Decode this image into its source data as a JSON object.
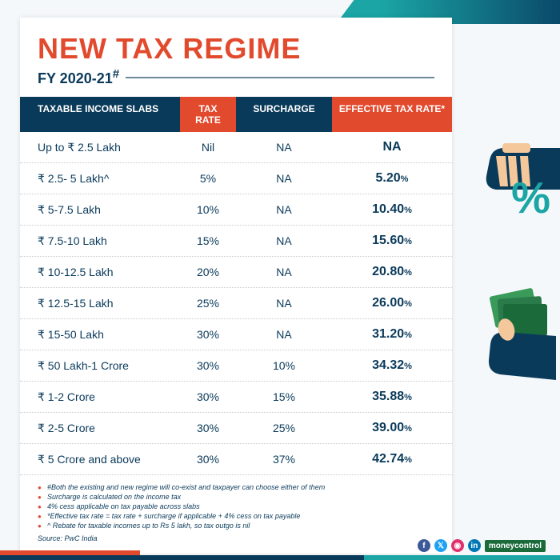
{
  "title": "NEW TAX REGIME",
  "subtitle": "FY 2020-21",
  "subtitle_suffix": "#",
  "headers": {
    "col1": "TAXABLE INCOME SLABS",
    "col2": "TAX RATE",
    "col3": "SURCHARGE",
    "col4": "EFFECTIVE TAX RATE*"
  },
  "rows": [
    {
      "slab": "Up to ₹ 2.5 Lakh",
      "rate": "Nil",
      "surcharge": "NA",
      "eff": "NA",
      "eff_pct": ""
    },
    {
      "slab": "₹ 2.5- 5 Lakh^",
      "rate": "5%",
      "surcharge": "NA",
      "eff": "5.20",
      "eff_pct": "%"
    },
    {
      "slab": "₹ 5-7.5 Lakh",
      "rate": "10%",
      "surcharge": "NA",
      "eff": "10.40",
      "eff_pct": "%"
    },
    {
      "slab": "₹ 7.5-10 Lakh",
      "rate": "15%",
      "surcharge": "NA",
      "eff": "15.60",
      "eff_pct": "%"
    },
    {
      "slab": "₹ 10-12.5 Lakh",
      "rate": "20%",
      "surcharge": "NA",
      "eff": "20.80",
      "eff_pct": "%"
    },
    {
      "slab": "₹ 12.5-15 Lakh",
      "rate": "25%",
      "surcharge": "NA",
      "eff": "26.00",
      "eff_pct": "%"
    },
    {
      "slab": "₹ 15-50 Lakh",
      "rate": "30%",
      "surcharge": "NA",
      "eff": "31.20",
      "eff_pct": "%"
    },
    {
      "slab": "₹ 50 Lakh-1 Crore",
      "rate": "30%",
      "surcharge": "10%",
      "eff": "34.32",
      "eff_pct": "%"
    },
    {
      "slab": "₹ 1-2 Crore",
      "rate": "30%",
      "surcharge": "15%",
      "eff": "35.88",
      "eff_pct": "%"
    },
    {
      "slab": "₹ 2-5 Crore",
      "rate": "30%",
      "surcharge": "25%",
      "eff": "39.00",
      "eff_pct": "%"
    },
    {
      "slab": "₹ 5 Crore and above",
      "rate": "30%",
      "surcharge": "37%",
      "eff": "42.74",
      "eff_pct": "%"
    }
  ],
  "notes": [
    "#Both the existing and new regime will co-exist and taxpayer can choose either of them",
    "Surcharge is calculated on the income tax",
    "4% cess applicable on tax payable across slabs",
    "*Effective tax rate = tax rate + surcharge if applicable + 4% cess on tax payable",
    "^ Rebate for taxable incomes up to Rs 5 lakh, so tax outgo is nil"
  ],
  "source": "Source: PwC India",
  "brand": "moneycontrol",
  "colors": {
    "accent": "#e24a2e",
    "navy": "#0a3a5a",
    "teal": "#1ba5a5"
  }
}
